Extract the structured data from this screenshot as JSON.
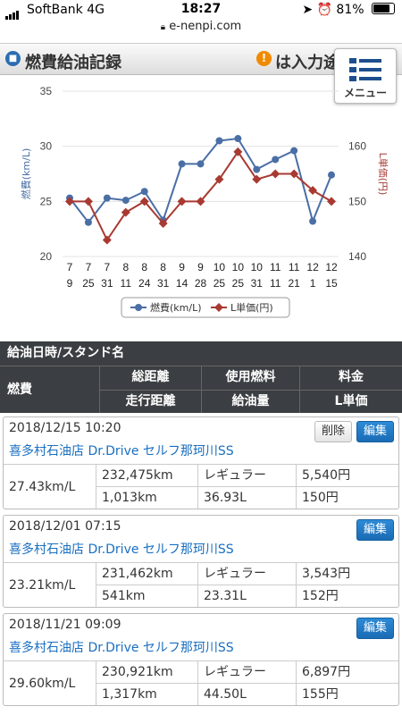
{
  "status_bar": {
    "carrier": "SoftBank  4G",
    "time": "18:27",
    "battery": "81%",
    "battery_level": 0.81
  },
  "url": "e-nenpi.com",
  "header": {
    "title": "燃費給油記録",
    "notice": "は入力途中のデータです"
  },
  "menu": {
    "label": "メニュー"
  },
  "chart_data": {
    "type": "line",
    "categories": [
      [
        "7",
        "9"
      ],
      [
        "7",
        "25"
      ],
      [
        "7",
        "31"
      ],
      [
        "8",
        "11"
      ],
      [
        "8",
        "24"
      ],
      [
        "8",
        "31"
      ],
      [
        "9",
        "14"
      ],
      [
        "9",
        "28"
      ],
      [
        "10",
        "25"
      ],
      [
        "10",
        "25"
      ],
      [
        "10",
        "31"
      ],
      [
        "11",
        "11"
      ],
      [
        "11",
        "21"
      ],
      [
        "12",
        "1"
      ],
      [
        "12",
        "15"
      ]
    ],
    "y_left": {
      "label": "燃費(km/L)",
      "ticks": [
        "20",
        "25",
        "30",
        "35"
      ],
      "range": [
        20,
        35
      ]
    },
    "y_right": {
      "label": "L単価(円)",
      "ticks": [
        "140",
        "150",
        "160"
      ],
      "range": [
        140,
        170
      ]
    },
    "series": [
      {
        "name": "燃費(km/L)",
        "color": "#4a6fa5",
        "axis": "left",
        "values": [
          25.3,
          23.1,
          25.3,
          25.1,
          25.9,
          23.3,
          28.4,
          28.4,
          30.5,
          30.7,
          27.9,
          28.8,
          29.6,
          23.2,
          27.4
        ]
      },
      {
        "name": "L単価(円)",
        "color": "#a83a32",
        "axis": "right",
        "values": [
          150,
          150,
          143,
          148,
          150,
          146,
          150,
          150,
          154,
          159,
          154,
          155,
          155,
          152,
          150
        ]
      }
    ],
    "legend_position": "bottom"
  },
  "table": {
    "head_row1": "給油日時/スタンド名",
    "head_fuel": "燃費",
    "head_cols_top": [
      "総距離",
      "使用燃料",
      "料金"
    ],
    "head_cols_bottom": [
      "走行距離",
      "給油量",
      "L単価"
    ]
  },
  "buttons": {
    "delete": "削除",
    "edit": "編集"
  },
  "records": [
    {
      "datetime": "2018/12/15 10:20",
      "store": "喜多村石油店 Dr.Drive セルフ那珂川SS",
      "fuel_economy": "27.43km/L",
      "total_distance": "232,475km",
      "fuel_type": "レギュラー",
      "price": "5,540円",
      "trip_distance": "1,013km",
      "fuel_amount": "36.93L",
      "unit_price": "150円",
      "show_delete": true
    },
    {
      "datetime": "2018/12/01 07:15",
      "store": "喜多村石油店 Dr.Drive セルフ那珂川SS",
      "fuel_economy": "23.21km/L",
      "total_distance": "231,462km",
      "fuel_type": "レギュラー",
      "price": "3,543円",
      "trip_distance": "541km",
      "fuel_amount": "23.31L",
      "unit_price": "152円",
      "show_delete": false
    },
    {
      "datetime": "2018/11/21 09:09",
      "store": "喜多村石油店 Dr.Drive セルフ那珂川SS",
      "fuel_economy": "29.60km/L",
      "total_distance": "230,921km",
      "fuel_type": "レギュラー",
      "price": "6,897円",
      "trip_distance": "1,317km",
      "fuel_amount": "44.50L",
      "unit_price": "155円",
      "show_delete": false
    }
  ]
}
